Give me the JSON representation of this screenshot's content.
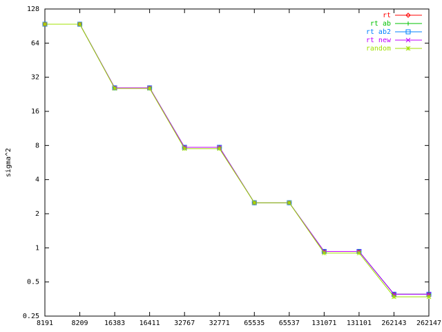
{
  "chart_data": {
    "type": "line",
    "y_label": "sigma^2",
    "log_scale": "y",
    "categories": [
      "8191",
      "8209",
      "16383",
      "16411",
      "32767",
      "32771",
      "65535",
      "65537",
      "131071",
      "131101",
      "262143",
      "262147"
    ],
    "ylim": [
      0.25,
      128
    ],
    "yticks": [
      0.25,
      0.5,
      1,
      2,
      4,
      8,
      16,
      32,
      64,
      128
    ],
    "legend": "top-right",
    "series": [
      {
        "name": "rt",
        "color": "#ff0000",
        "marker": "diamond",
        "values": [
          94,
          94,
          25.8,
          25.8,
          7.7,
          7.7,
          2.5,
          2.5,
          0.93,
          0.93,
          0.39,
          0.39
        ]
      },
      {
        "name": "rt ab",
        "color": "#00c000",
        "marker": "plus",
        "values": [
          94,
          94,
          25.8,
          25.8,
          7.7,
          7.7,
          2.5,
          2.5,
          0.93,
          0.93,
          0.39,
          0.39
        ]
      },
      {
        "name": "rt ab2",
        "color": "#0080ff",
        "marker": "square",
        "values": [
          94,
          94,
          25.8,
          25.8,
          7.7,
          7.7,
          2.5,
          2.5,
          0.93,
          0.93,
          0.39,
          0.39
        ]
      },
      {
        "name": "rt new",
        "color": "#c000ff",
        "marker": "cross",
        "values": [
          94,
          94,
          25.8,
          25.8,
          7.7,
          7.7,
          2.5,
          2.5,
          0.93,
          0.93,
          0.39,
          0.39
        ]
      },
      {
        "name": "random",
        "color": "#a0e000",
        "marker": "star",
        "values": [
          94,
          94,
          25.5,
          25.5,
          7.5,
          7.5,
          2.5,
          2.5,
          0.9,
          0.9,
          0.37,
          0.37
        ]
      }
    ]
  }
}
